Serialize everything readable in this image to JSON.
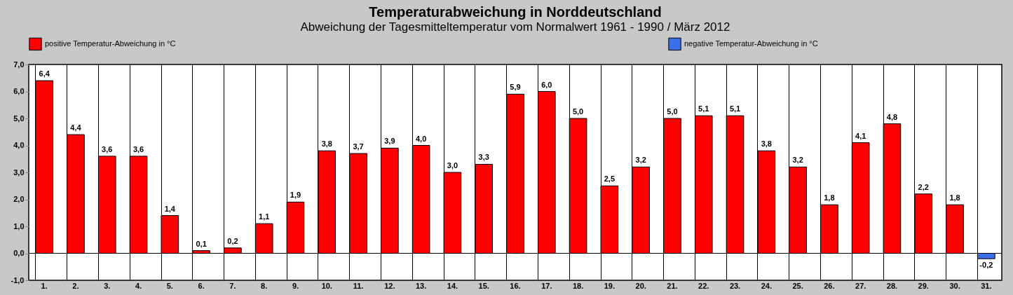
{
  "chart_data": {
    "type": "bar",
    "title": "Temperaturabweichung in Norddeutschland",
    "subtitle": "Abweichung der Tagesmitteltemperatur vom Normalwert 1961 - 1990  /  März 2012",
    "categories": [
      "1.",
      "2.",
      "3.",
      "4.",
      "5.",
      "6.",
      "7.",
      "8.",
      "9.",
      "10.",
      "11.",
      "12.",
      "13.",
      "14.",
      "15.",
      "16.",
      "17.",
      "18.",
      "19.",
      "20.",
      "21.",
      "22.",
      "23.",
      "24.",
      "25.",
      "26.",
      "27.",
      "28.",
      "29.",
      "30.",
      "31."
    ],
    "series": [
      {
        "name": "positive Temperatur-Abweichung in °C",
        "color": "#ff0000",
        "values": [
          6.4,
          4.4,
          3.6,
          3.6,
          1.4,
          0.1,
          0.2,
          1.1,
          1.9,
          3.8,
          3.7,
          3.9,
          4.0,
          3.0,
          3.3,
          5.9,
          6.0,
          5.0,
          2.5,
          3.2,
          5.0,
          5.1,
          5.1,
          3.8,
          3.2,
          1.8,
          4.1,
          4.8,
          2.2,
          1.8,
          null
        ],
        "value_labels": [
          "6,4",
          "4,4",
          "3,6",
          "3,6",
          "1,4",
          "0,1",
          "0,2",
          "1,1",
          "1,9",
          "3,8",
          "3,7",
          "3,9",
          "4,0",
          "3,0",
          "3,3",
          "5,9",
          "6,0",
          "5,0",
          "2,5",
          "3,2",
          "5,0",
          "5,1",
          "5,1",
          "3,8",
          "3,2",
          "1,8",
          "4,1",
          "4,8",
          "2,2",
          "1,8",
          null
        ]
      },
      {
        "name": "negative Temperatur-Abweichung in °C",
        "color": "#3a6fe8",
        "values": [
          null,
          null,
          null,
          null,
          null,
          null,
          null,
          null,
          null,
          null,
          null,
          null,
          null,
          null,
          null,
          null,
          null,
          null,
          null,
          null,
          null,
          null,
          null,
          null,
          null,
          null,
          null,
          null,
          null,
          null,
          -0.2
        ],
        "value_labels": [
          null,
          null,
          null,
          null,
          null,
          null,
          null,
          null,
          null,
          null,
          null,
          null,
          null,
          null,
          null,
          null,
          null,
          null,
          null,
          null,
          null,
          null,
          null,
          null,
          null,
          null,
          null,
          null,
          null,
          null,
          "-0,2"
        ]
      }
    ],
    "ylim": [
      -1,
      7
    ],
    "yticks": [
      {
        "value": -1,
        "label": "-1,0"
      },
      {
        "value": 0,
        "label": "0,0"
      },
      {
        "value": 1,
        "label": "1,0"
      },
      {
        "value": 2,
        "label": "2,0"
      },
      {
        "value": 3,
        "label": "3,0"
      },
      {
        "value": 4,
        "label": "4,0"
      },
      {
        "value": 5,
        "label": "5,0"
      },
      {
        "value": 6,
        "label": "6,0"
      },
      {
        "value": 7,
        "label": "7,0"
      }
    ],
    "ref_lines": [
      {
        "axis": "y",
        "value": 0,
        "color": "#000000"
      }
    ],
    "grid": "x",
    "legend": "top"
  }
}
